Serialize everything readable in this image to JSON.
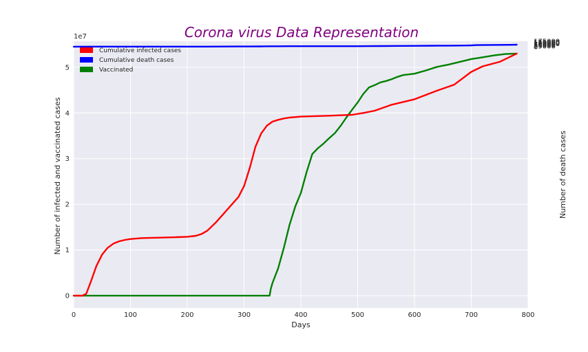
{
  "chart_data": {
    "type": "line",
    "title": "Corona virus Data Representation",
    "title_color": "#800080",
    "xlabel": "Days",
    "ylabel_left": "Number of infected and vaccinated cases",
    "ylabel_right": "Number of death cases",
    "left_axis_multiplier": "1e7",
    "xlim": [
      0,
      800
    ],
    "ylim_left": [
      -2700000,
      55700000
    ],
    "ylim_right": [
      -8700000,
      180000
    ],
    "x_ticks": [
      "0",
      "100",
      "200",
      "300",
      "400",
      "500",
      "600",
      "700",
      "800"
    ],
    "left_ticks": [
      "0",
      "1",
      "2",
      "3",
      "4",
      "5"
    ],
    "right_ticks": [
      "0",
      "25000",
      "50000",
      "75000",
      "100000",
      "125000",
      "150000",
      "175000"
    ],
    "grid": true,
    "background": "#EAEAF2",
    "legend_position": "top-left",
    "series": [
      {
        "name": "Cumulative infected cases",
        "axis": "left",
        "color": "#ff0000",
        "x": [
          0,
          15,
          22,
          30,
          40,
          50,
          60,
          70,
          80,
          90,
          100,
          120,
          150,
          180,
          200,
          215,
          225,
          235,
          250,
          270,
          290,
          300,
          310,
          320,
          330,
          340,
          350,
          360,
          370,
          380,
          400,
          450,
          490,
          510,
          530,
          560,
          600,
          640,
          670,
          700,
          720,
          750,
          780
        ],
        "y": [
          0,
          0,
          400000,
          3000000,
          6500000,
          9000000,
          10500000,
          11400000,
          11900000,
          12200000,
          12400000,
          12600000,
          12700000,
          12800000,
          12900000,
          13100000,
          13500000,
          14200000,
          16000000,
          18800000,
          21600000,
          24000000,
          28000000,
          32600000,
          35500000,
          37200000,
          38100000,
          38500000,
          38800000,
          39000000,
          39200000,
          39400000,
          39600000,
          40000000,
          40500000,
          41800000,
          43000000,
          44900000,
          46200000,
          49000000,
          50200000,
          51200000,
          53000000
        ]
      },
      {
        "name": "Cumulative death cases",
        "axis": "right",
        "color": "#0000ff",
        "x": [
          0,
          60,
          100,
          150,
          200,
          230,
          260,
          290,
          310,
          330,
          345,
          360,
          380,
          400,
          450,
          500,
          520,
          540,
          570,
          600,
          630,
          660,
          690,
          700,
          710,
          730,
          750,
          770,
          780
        ],
        "y": [
          0,
          400,
          800,
          1000,
          1200,
          1500,
          3000,
          5500,
          7200,
          8500,
          12000,
          13500,
          14500,
          15000,
          15200,
          16200,
          17800,
          20500,
          23500,
          27000,
          30500,
          34500,
          38500,
          43000,
          51000,
          56000,
          59500,
          61500,
          65000
        ]
      },
      {
        "name": "Vaccinated",
        "axis": "left",
        "color": "#008000",
        "x": [
          0,
          345,
          347,
          350,
          360,
          370,
          380,
          390,
          400,
          410,
          420,
          430,
          440,
          450,
          460,
          470,
          480,
          490,
          500,
          510,
          520,
          530,
          540,
          550,
          560,
          570,
          580,
          600,
          620,
          640,
          660,
          680,
          700,
          720,
          740,
          760,
          780
        ],
        "y": [
          0,
          0,
          1500000,
          2800000,
          6000000,
          10500000,
          15500000,
          19500000,
          22500000,
          27000000,
          31000000,
          32300000,
          33300000,
          34500000,
          35600000,
          37200000,
          39000000,
          40700000,
          42300000,
          44200000,
          45600000,
          46100000,
          46700000,
          47000000,
          47400000,
          47900000,
          48300000,
          48600000,
          49300000,
          50100000,
          50600000,
          51200000,
          51800000,
          52200000,
          52600000,
          52900000,
          53000000
        ]
      }
    ]
  }
}
